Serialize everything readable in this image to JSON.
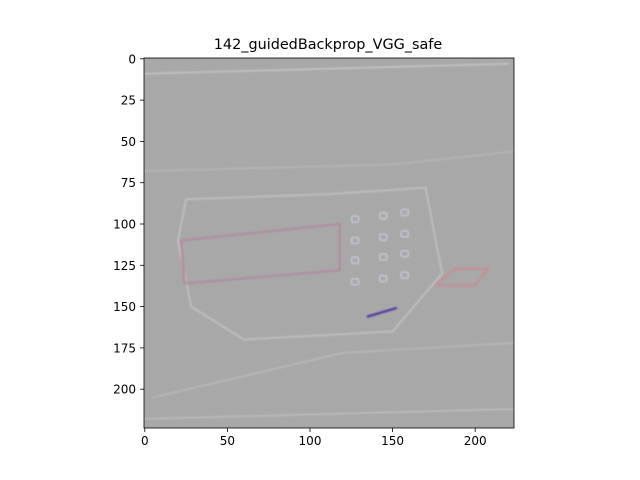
{
  "chart_data": {
    "type": "heatmap",
    "title": "142_guidedBackprop_VGG_safe",
    "xlabel": "",
    "ylabel": "",
    "xlim": [
      -0.5,
      223.5
    ],
    "ylim": [
      223.5,
      -0.5
    ],
    "x_ticks": [
      0,
      50,
      100,
      150,
      200
    ],
    "x_tick_labels": [
      "0",
      "50",
      "100",
      "150",
      "200"
    ],
    "y_ticks": [
      0,
      25,
      50,
      75,
      100,
      125,
      150,
      175,
      200
    ],
    "y_tick_labels": [
      "0",
      "25",
      "50",
      "75",
      "100",
      "125",
      "150",
      "175",
      "200"
    ],
    "grid": false,
    "image": {
      "width": 224,
      "height": 224,
      "background_color": "#a8a8a8",
      "description_features": [
        {
          "kind": "edge-line",
          "points": [
            [
              0,
              9
            ],
            [
              220,
              3
            ]
          ],
          "color": "#c4c4c4"
        },
        {
          "kind": "edge-line",
          "points": [
            [
              0,
              68
            ],
            [
              150,
              64
            ],
            [
              224,
              56
            ]
          ],
          "color": "#b6b6b6"
        },
        {
          "kind": "edge-line",
          "points": [
            [
              5,
              205
            ],
            [
              120,
              178
            ],
            [
              224,
              172
            ]
          ],
          "color": "#b8b8b8"
        },
        {
          "kind": "edge-line",
          "points": [
            [
              0,
              218
            ],
            [
              224,
              212
            ]
          ],
          "color": "#bcbcbc"
        },
        {
          "kind": "panel-outline",
          "points": [
            [
              25,
              85
            ],
            [
              110,
              82
            ],
            [
              170,
              78
            ],
            [
              180,
              130
            ],
            [
              150,
              165
            ],
            [
              60,
              170
            ],
            [
              28,
              150
            ],
            [
              20,
              110
            ],
            [
              25,
              85
            ]
          ],
          "color": "#bdbdbd"
        },
        {
          "kind": "label-box",
          "points": [
            [
              22,
              110
            ],
            [
              118,
              100
            ],
            [
              118,
              128
            ],
            [
              24,
              136
            ],
            [
              22,
              110
            ]
          ],
          "color": "#b28ca0"
        },
        {
          "kind": "keypad-keys",
          "points": [
            [
              127,
              97
            ],
            [
              144,
              95
            ],
            [
              157,
              93
            ],
            [
              127,
              110
            ],
            [
              144,
              108
            ],
            [
              157,
              106
            ],
            [
              127,
              122
            ],
            [
              144,
              120
            ],
            [
              157,
              118
            ],
            [
              127,
              135
            ],
            [
              144,
              133
            ],
            [
              157,
              131
            ]
          ],
          "color": "#c8c8d8"
        },
        {
          "kind": "handle",
          "points": [
            [
              176,
              137
            ],
            [
              188,
              127
            ],
            [
              208,
              127
            ],
            [
              200,
              137
            ],
            [
              176,
              137
            ]
          ],
          "color": "#c49098"
        },
        {
          "kind": "slot",
          "points": [
            [
              135,
              156
            ],
            [
              152,
              151
            ]
          ],
          "color": "#5c3fa0"
        }
      ]
    }
  }
}
